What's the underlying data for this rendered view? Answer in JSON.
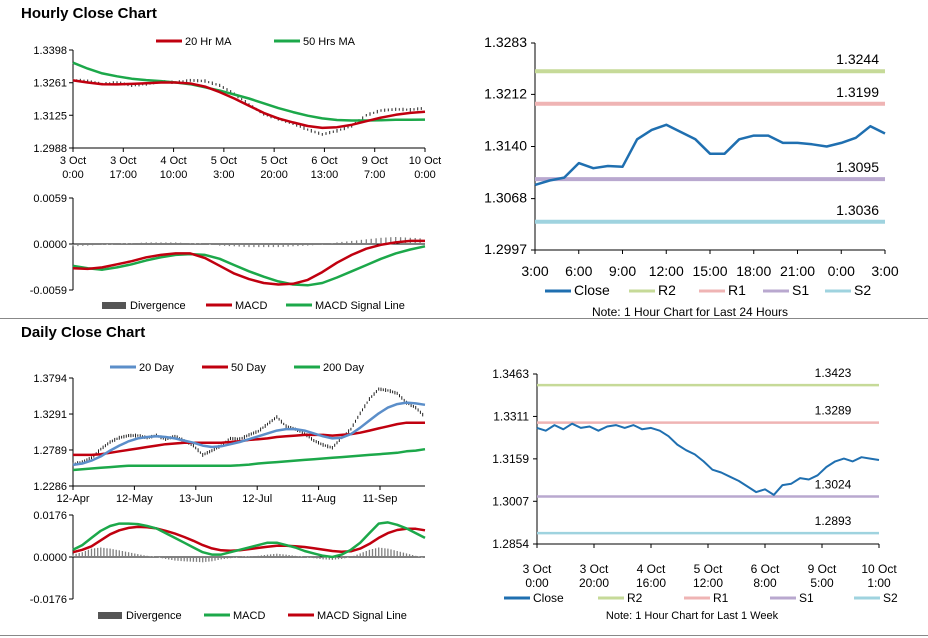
{
  "sections": {
    "hourly_title": "Hourly Close Chart",
    "daily_title": "Daily Close Chart"
  },
  "colors": {
    "ma_short": "#c0000f",
    "ma_long": "#1ca84a",
    "ma_20day": "#5b8ec9",
    "close_line": "#1f6fb0",
    "r2": "#c6da98",
    "r1": "#efb4b4",
    "s1": "#b9a8cf",
    "s2": "#9fd3df",
    "divergence": "#7f7f7f",
    "price_bar": "#222222"
  },
  "chart_data": [
    {
      "id": "hourly_price",
      "type": "line",
      "legend": [
        "20 Hr MA",
        "50 Hrs MA"
      ],
      "y_ticks": [
        "1.3398",
        "1.3261",
        "1.3125",
        "1.2988"
      ],
      "ylim": [
        1.2988,
        1.3398
      ],
      "x_ticks": [
        [
          "3 Oct",
          "0:00"
        ],
        [
          "3 Oct",
          "17:00"
        ],
        [
          "4 Oct",
          "10:00"
        ],
        [
          "5 Oct",
          "3:00"
        ],
        [
          "5 Oct",
          "20:00"
        ],
        [
          "6 Oct",
          "13:00"
        ],
        [
          "9 Oct",
          "7:00"
        ],
        [
          "10 Oct",
          "0:00"
        ]
      ],
      "close": [
        1.3272,
        1.3268,
        1.3255,
        1.3262,
        1.325,
        1.3256,
        1.3266,
        1.3262,
        1.3271,
        1.3268,
        1.325,
        1.3215,
        1.317,
        1.313,
        1.311,
        1.309,
        1.3065,
        1.3045,
        1.306,
        1.308,
        1.3125,
        1.3145,
        1.315,
        1.3148,
        1.3155
      ],
      "series": [
        {
          "name": "20 Hr MA",
          "values": [
            1.3271,
            1.3262,
            1.3255,
            1.3254,
            1.3256,
            1.3259,
            1.3262,
            1.3262,
            1.3258,
            1.3245,
            1.3222,
            1.3195,
            1.3165,
            1.3135,
            1.3112,
            1.3095,
            1.308,
            1.3072,
            1.3075,
            1.3085,
            1.31,
            1.3115,
            1.3127,
            1.3135,
            1.314
          ]
        },
        {
          "name": "50 Hrs MA",
          "values": [
            1.3345,
            1.332,
            1.33,
            1.3288,
            1.3278,
            1.3272,
            1.3268,
            1.3262,
            1.3255,
            1.3242,
            1.3228,
            1.3212,
            1.3195,
            1.3175,
            1.3155,
            1.3138,
            1.3123,
            1.3112,
            1.3105,
            1.3103,
            1.3103,
            1.3104,
            1.3106,
            1.3106,
            1.3107
          ]
        }
      ]
    },
    {
      "id": "hourly_macd",
      "type": "line",
      "legend": [
        "Divergence",
        "MACD",
        "MACD Signal Line"
      ],
      "y_ticks": [
        "0.0059",
        "0.0000",
        "-0.0059"
      ],
      "ylim": [
        -0.0059,
        0.0059
      ],
      "divergence": [
        -0.0003,
        -0.0002,
        -0.0001,
        0.0,
        0.0001,
        0.0002,
        0.0002,
        0.0002,
        0.0001,
        0.0,
        -0.0002,
        -0.0003,
        -0.0004,
        -0.0004,
        -0.0004,
        -0.0003,
        -0.0002,
        -0.0001,
        0.0002,
        0.0004,
        0.0006,
        0.0008,
        0.0009,
        0.0008,
        0.0007
      ],
      "series": [
        {
          "name": "MACD",
          "values": [
            -0.0031,
            -0.0032,
            -0.003,
            -0.0026,
            -0.0022,
            -0.0017,
            -0.0014,
            -0.0012,
            -0.0012,
            -0.0018,
            -0.0028,
            -0.0038,
            -0.0045,
            -0.005,
            -0.0052,
            -0.0051,
            -0.0046,
            -0.0036,
            -0.0024,
            -0.0014,
            -0.0006,
            -0.0001,
            0.0002,
            0.0004,
            0.0004
          ]
        },
        {
          "name": "MACD Signal Line",
          "values": [
            -0.0028,
            -0.0031,
            -0.0033,
            -0.003,
            -0.0026,
            -0.0021,
            -0.0017,
            -0.0014,
            -0.0013,
            -0.0014,
            -0.0019,
            -0.0027,
            -0.0035,
            -0.0042,
            -0.0048,
            -0.0052,
            -0.0053,
            -0.005,
            -0.0043,
            -0.0035,
            -0.0027,
            -0.0019,
            -0.0012,
            -0.0007,
            -0.0003
          ]
        }
      ]
    },
    {
      "id": "hourly_levels",
      "type": "line",
      "y_ticks": [
        "1.3283",
        "1.3212",
        "1.3140",
        "1.3068",
        "1.2997"
      ],
      "ylim": [
        1.2997,
        1.3283
      ],
      "x_ticks": [
        "3:00",
        "6:00",
        "9:00",
        "12:00",
        "15:00",
        "18:00",
        "21:00",
        "0:00",
        "3:00"
      ],
      "levels": [
        {
          "name": "R2",
          "value": 1.3244,
          "label": "1.3244"
        },
        {
          "name": "R1",
          "value": 1.3199,
          "label": "1.3199"
        },
        {
          "name": "S1",
          "value": 1.3095,
          "label": "1.3095"
        },
        {
          "name": "S2",
          "value": 1.3036,
          "label": "1.3036"
        }
      ],
      "close": [
        1.3087,
        1.3093,
        1.3097,
        1.3117,
        1.311,
        1.3113,
        1.3112,
        1.315,
        1.3163,
        1.317,
        1.316,
        1.315,
        1.313,
        1.313,
        1.315,
        1.3155,
        1.3155,
        1.3145,
        1.3145,
        1.3143,
        1.314,
        1.3145,
        1.3152,
        1.3168,
        1.3158
      ],
      "legend": [
        "Close",
        "R2",
        "R1",
        "S1",
        "S2"
      ],
      "note": "Note: 1 Hour Chart for Last 24 Hours"
    },
    {
      "id": "daily_price",
      "type": "line",
      "legend": [
        "20 Day",
        "50 Day",
        "200 Day"
      ],
      "y_ticks": [
        "1.3794",
        "1.3291",
        "1.2789",
        "1.2286"
      ],
      "ylim": [
        1.2286,
        1.3794
      ],
      "x_ticks": [
        "12-Apr",
        "12-May",
        "13-Jun",
        "12-Jul",
        "11-Aug",
        "11-Sep"
      ],
      "close": [
        1.259,
        1.262,
        1.268,
        1.28,
        1.29,
        1.296,
        1.299,
        1.299,
        1.296,
        1.299,
        1.294,
        1.298,
        1.292,
        1.285,
        1.272,
        1.278,
        1.285,
        1.295,
        1.294,
        1.3,
        1.305,
        1.315,
        1.325,
        1.312,
        1.308,
        1.302,
        1.292,
        1.286,
        1.282,
        1.296,
        1.308,
        1.33,
        1.35,
        1.364,
        1.362,
        1.358,
        1.345,
        1.338,
        1.325
      ],
      "series": [
        {
          "name": "20 Day",
          "values": [
            1.258,
            1.26,
            1.264,
            1.27,
            1.278,
            1.285,
            1.291,
            1.295,
            1.297,
            1.298,
            1.297,
            1.295,
            1.292,
            1.289,
            1.285,
            1.283,
            1.284,
            1.287,
            1.29,
            1.294,
            1.298,
            1.302,
            1.306,
            1.308,
            1.308,
            1.306,
            1.302,
            1.298,
            1.295,
            1.296,
            1.301,
            1.31,
            1.32,
            1.33,
            1.338,
            1.343,
            1.345,
            1.344,
            1.342
          ]
        },
        {
          "name": "50 Day",
          "values": [
            1.272,
            1.272,
            1.272,
            1.273,
            1.275,
            1.277,
            1.279,
            1.281,
            1.283,
            1.285,
            1.287,
            1.288,
            1.289,
            1.289,
            1.289,
            1.289,
            1.289,
            1.29,
            1.291,
            1.293,
            1.294,
            1.295,
            1.297,
            1.298,
            1.299,
            1.3,
            1.3,
            1.3,
            1.299,
            1.3,
            1.301,
            1.303,
            1.306,
            1.309,
            1.312,
            1.315,
            1.317,
            1.317,
            1.317
          ]
        },
        {
          "name": "200 Day",
          "values": [
            1.251,
            1.252,
            1.253,
            1.254,
            1.255,
            1.256,
            1.257,
            1.257,
            1.257,
            1.257,
            1.257,
            1.257,
            1.257,
            1.257,
            1.257,
            1.257,
            1.257,
            1.257,
            1.2575,
            1.2585,
            1.26,
            1.261,
            1.262,
            1.263,
            1.264,
            1.265,
            1.266,
            1.267,
            1.268,
            1.269,
            1.27,
            1.271,
            1.272,
            1.273,
            1.274,
            1.275,
            1.277,
            1.278,
            1.28
          ]
        }
      ]
    },
    {
      "id": "daily_macd",
      "type": "line",
      "legend": [
        "Divergence",
        "MACD",
        "MACD Signal Line"
      ],
      "y_ticks": [
        "0.0176",
        "0.0000",
        "-0.0176"
      ],
      "ylim": [
        -0.0176,
        0.0176
      ],
      "divergence": [
        0.001,
        0.002,
        0.0035,
        0.004,
        0.0035,
        0.0028,
        0.002,
        0.0012,
        0.0005,
        0.0,
        -0.0008,
        -0.0015,
        -0.0018,
        -0.002,
        -0.0022,
        -0.0018,
        -0.001,
        -0.0005,
        0.0,
        0.0003,
        0.0005,
        0.001,
        0.0014,
        0.001,
        0.0005,
        0.0,
        -0.0005,
        -0.001,
        -0.0012,
        -0.0008,
        0.0,
        0.0015,
        0.003,
        0.004,
        0.0035,
        0.0025,
        0.0015,
        0.0005,
        -0.0005
      ],
      "series": [
        {
          "name": "MACD",
          "values": [
            0.003,
            0.005,
            0.008,
            0.011,
            0.013,
            0.014,
            0.014,
            0.0138,
            0.013,
            0.012,
            0.01,
            0.008,
            0.006,
            0.004,
            0.002,
            0.001,
            0.001,
            0.002,
            0.003,
            0.004,
            0.005,
            0.006,
            0.006,
            0.005,
            0.004,
            0.0025,
            0.0015,
            0.0005,
            0.0,
            0.001,
            0.003,
            0.006,
            0.01,
            0.014,
            0.0145,
            0.0135,
            0.012,
            0.01,
            0.008
          ]
        },
        {
          "name": "MACD Signal Line",
          "values": [
            0.002,
            0.003,
            0.0045,
            0.007,
            0.0095,
            0.0112,
            0.0122,
            0.0126,
            0.0125,
            0.012,
            0.011,
            0.0098,
            0.0084,
            0.0068,
            0.005,
            0.0036,
            0.0028,
            0.0026,
            0.0028,
            0.0033,
            0.0038,
            0.0043,
            0.0047,
            0.0047,
            0.0045,
            0.0042,
            0.0037,
            0.0031,
            0.0025,
            0.0022,
            0.0024,
            0.0035,
            0.0055,
            0.008,
            0.01,
            0.0113,
            0.0118,
            0.0118,
            0.0112
          ]
        }
      ]
    },
    {
      "id": "daily_levels",
      "type": "line",
      "y_ticks": [
        "1.3463",
        "1.3311",
        "1.3159",
        "1.3007",
        "1.2854"
      ],
      "ylim": [
        1.2854,
        1.3463
      ],
      "x_ticks": [
        [
          "3 Oct",
          "0:00"
        ],
        [
          "3 Oct",
          "20:00"
        ],
        [
          "4 Oct",
          "16:00"
        ],
        [
          "5 Oct",
          "12:00"
        ],
        [
          "6 Oct",
          "8:00"
        ],
        [
          "9 Oct",
          "5:00"
        ],
        [
          "10 Oct",
          "1:00"
        ]
      ],
      "levels": [
        {
          "name": "R2",
          "value": 1.3423,
          "label": "1.3423"
        },
        {
          "name": "R1",
          "value": 1.3289,
          "label": "1.3289"
        },
        {
          "name": "S1",
          "value": 1.3024,
          "label": "1.3024"
        },
        {
          "name": "S2",
          "value": 1.2893,
          "label": "1.2893"
        }
      ],
      "close": [
        1.327,
        1.326,
        1.328,
        1.3265,
        1.3285,
        1.327,
        1.3275,
        1.326,
        1.3275,
        1.328,
        1.327,
        1.328,
        1.3265,
        1.327,
        1.326,
        1.324,
        1.321,
        1.319,
        1.3175,
        1.315,
        1.312,
        1.311,
        1.3095,
        1.308,
        1.306,
        1.304,
        1.305,
        1.303,
        1.3065,
        1.307,
        1.309,
        1.3085,
        1.31,
        1.313,
        1.315,
        1.316,
        1.315,
        1.3165,
        1.316,
        1.3155
      ],
      "legend": [
        "Close",
        "R2",
        "R1",
        "S1",
        "S2"
      ],
      "note": "Note: 1 Hour Chart for Last 1 Week"
    }
  ]
}
